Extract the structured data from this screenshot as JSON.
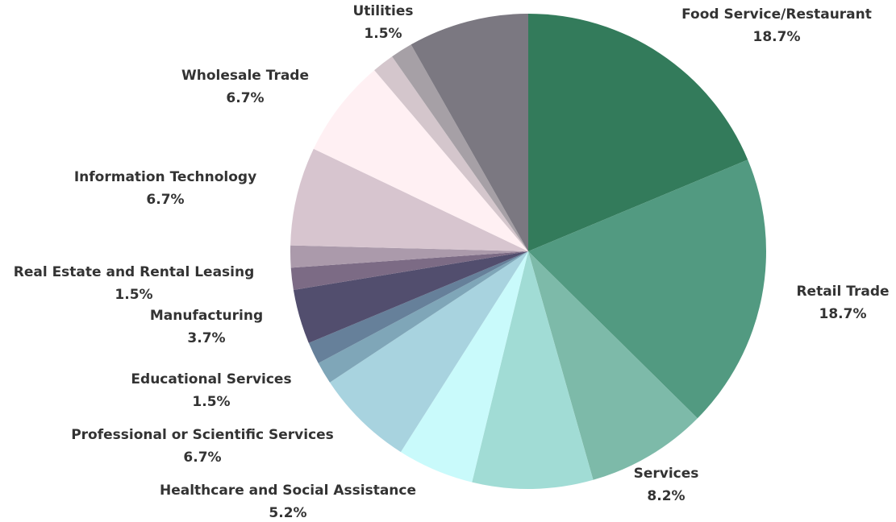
{
  "chart_data": {
    "type": "pie",
    "categories": [
      "Food Service/Restaurant",
      "Retail Trade",
      "Services",
      null,
      "Healthcare and Social Assistance",
      "Professional or Scientific Services",
      "Educational Services",
      null,
      "Manufacturing",
      "Real Estate and Rental Leasing",
      null,
      "Information Technology",
      "Wholesale Trade",
      null,
      "Utilities",
      null
    ],
    "values": [
      18.7,
      18.7,
      8.2,
      8.2,
      5.2,
      6.7,
      1.5,
      1.5,
      3.7,
      1.5,
      1.5,
      6.7,
      6.7,
      1.5,
      1.5,
      8.2
    ],
    "value_labels": [
      "18.7%",
      "18.7%",
      "8.2%",
      null,
      "5.2%",
      "6.7%",
      "1.5%",
      null,
      "3.7%",
      "1.5%",
      null,
      "6.7%",
      "6.7%",
      null,
      "1.5%",
      null
    ],
    "colors": [
      "#337b5b",
      "#529a81",
      "#7dbaa9",
      "#a1dcd5",
      "#c9fafb",
      "#a8d3df",
      "#7fa6b8",
      "#66809a",
      "#524e6e",
      "#7c6b85",
      "#ab9aab",
      "#d7c5cf",
      "#fff0f3",
      "#d4c6cc",
      "#a6a0a6",
      "#7b7881"
    ]
  }
}
